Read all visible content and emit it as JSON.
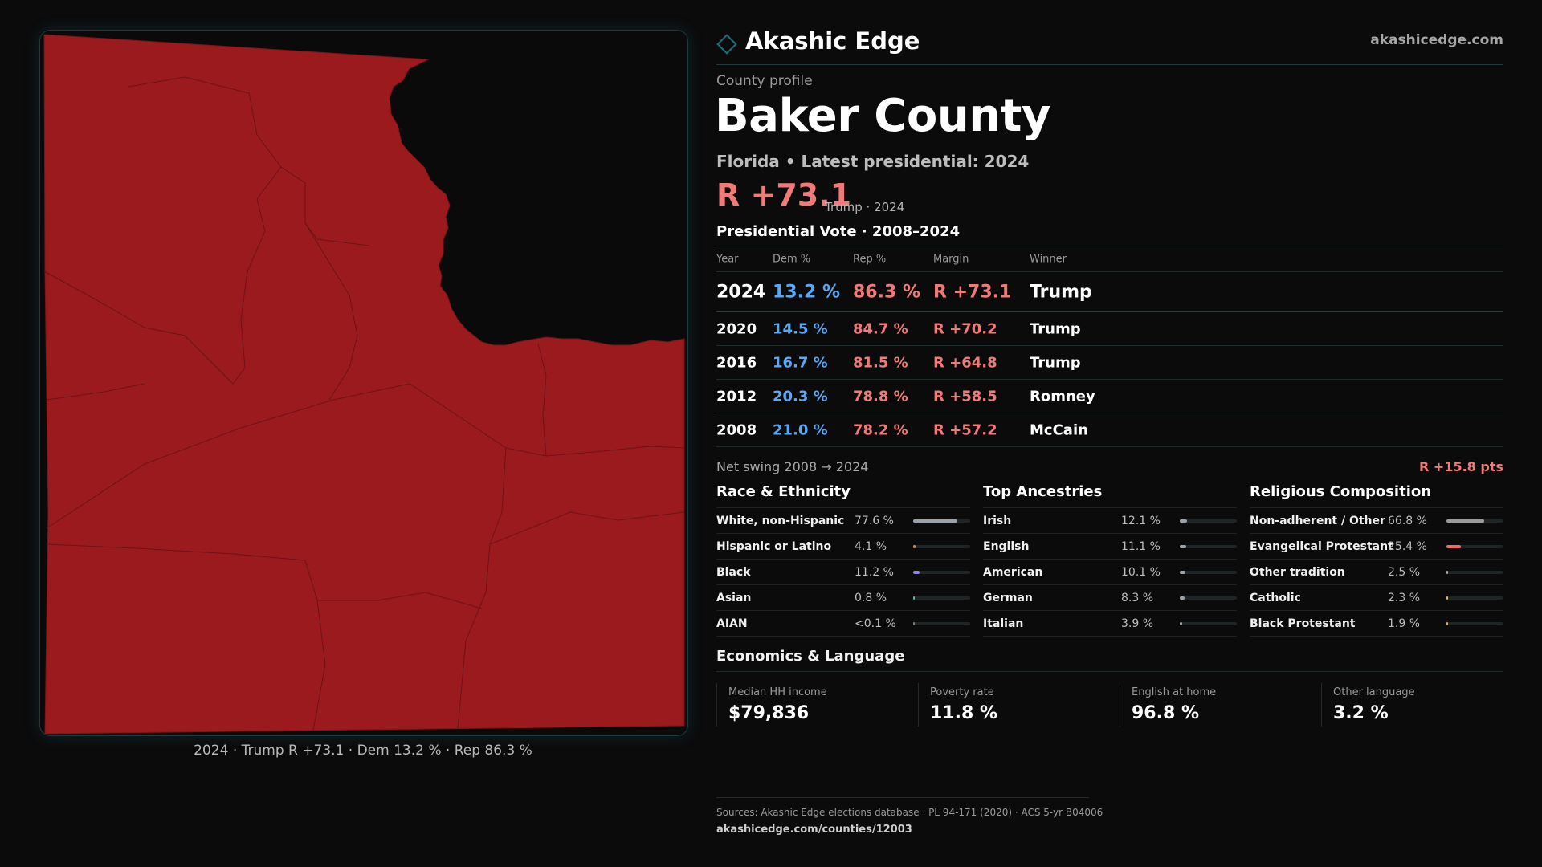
{
  "brand": {
    "name": "Akashic Edge",
    "url": "akashicedge.com"
  },
  "profile": {
    "eyebrow": "County profile",
    "county": "Baker County",
    "subtitle": "Florida • Latest presidential: 2024",
    "margin": "R +73.1",
    "margin_note": "Trump · 2024"
  },
  "vote": {
    "title": "Presidential Vote · 2008–2024",
    "headers": {
      "year": "Year",
      "dem": "Dem %",
      "rep": "Rep %",
      "margin": "Margin",
      "winner": "Winner"
    },
    "rows": [
      {
        "year": "2024",
        "dem": "13.2 %",
        "rep": "86.3 %",
        "margin": "R +73.1",
        "winner": "Trump"
      },
      {
        "year": "2020",
        "dem": "14.5 %",
        "rep": "84.7 %",
        "margin": "R +70.2",
        "winner": "Trump"
      },
      {
        "year": "2016",
        "dem": "16.7 %",
        "rep": "81.5 %",
        "margin": "R +64.8",
        "winner": "Trump"
      },
      {
        "year": "2012",
        "dem": "20.3 %",
        "rep": "78.8 %",
        "margin": "R +58.5",
        "winner": "Romney"
      },
      {
        "year": "2008",
        "dem": "21.0 %",
        "rep": "78.2 %",
        "margin": "R +57.2",
        "winner": "McCain"
      }
    ]
  },
  "swing": {
    "label": "Net swing 2008 → 2024",
    "value": "R +15.8 pts"
  },
  "race": {
    "title": "Race & Ethnicity",
    "items": [
      {
        "label": "White, non-Hispanic",
        "value": "77.6 %",
        "fraction": 0.776,
        "color": "#9aa3ad"
      },
      {
        "label": "Hispanic or Latino",
        "value": "4.1 %",
        "fraction": 0.041,
        "color": "#e8884a"
      },
      {
        "label": "Black",
        "value": "11.2 %",
        "fraction": 0.112,
        "color": "#8f86e0"
      },
      {
        "label": "Asian",
        "value": "0.8 %",
        "fraction": 0.008,
        "color": "#46c0a8"
      },
      {
        "label": "AIAN",
        "value": "<0.1 %",
        "fraction": 0.0,
        "color": "#7a7a7a"
      }
    ]
  },
  "ancestry": {
    "title": "Top Ancestries",
    "items": [
      {
        "label": "Irish",
        "value": "12.1 %",
        "fraction": 0.121,
        "color": "#9aa3ad"
      },
      {
        "label": "English",
        "value": "11.1 %",
        "fraction": 0.111,
        "color": "#9aa3ad"
      },
      {
        "label": "American",
        "value": "10.1 %",
        "fraction": 0.101,
        "color": "#9aa3ad"
      },
      {
        "label": "German",
        "value": "8.3 %",
        "fraction": 0.083,
        "color": "#9aa3ad"
      },
      {
        "label": "Italian",
        "value": "3.9 %",
        "fraction": 0.039,
        "color": "#9aa3ad"
      }
    ]
  },
  "religion": {
    "title": "Religious Composition",
    "items": [
      {
        "label": "Non-adherent / Other",
        "value": "66.8 %",
        "fraction": 0.668,
        "color": "#9a9a9a"
      },
      {
        "label": "Evangelical Protestant",
        "value": "25.4 %",
        "fraction": 0.254,
        "color": "#f06a6a"
      },
      {
        "label": "Other tradition",
        "value": "2.5 %",
        "fraction": 0.025,
        "color": "#b0b0b0"
      },
      {
        "label": "Catholic",
        "value": "2.3 %",
        "fraction": 0.023,
        "color": "#e8b84a"
      },
      {
        "label": "Black Protestant",
        "value": "1.9 %",
        "fraction": 0.019,
        "color": "#e8a24a"
      }
    ]
  },
  "economics": {
    "title": "Economics & Language",
    "items": [
      {
        "label": "Median HH income",
        "value": "$79,836"
      },
      {
        "label": "Poverty rate",
        "value": "11.8 %"
      },
      {
        "label": "English at home",
        "value": "96.8 %"
      },
      {
        "label": "Other language",
        "value": "3.2 %"
      }
    ]
  },
  "map": {
    "caption": "2024 · Trump R +73.1 · Dem 13.2 % · Rep 86.3 %",
    "fill": "#9b1a1e"
  },
  "sources": {
    "text": "Sources: Akashic Edge elections database · PL 94-171 (2020) · ACS 5-yr B04006",
    "url": "akashicedge.com/counties/12003"
  },
  "colors": {
    "dem": "#5aa7f5",
    "rep": "#f07a78",
    "accent": "#1e6f7a"
  }
}
